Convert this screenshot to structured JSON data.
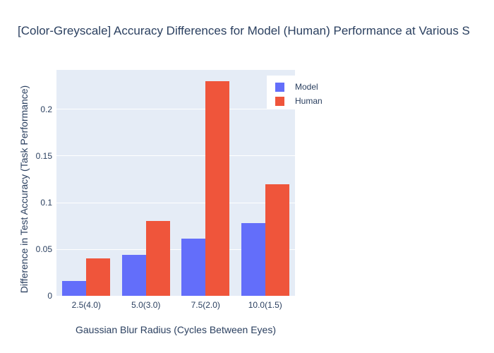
{
  "chart_title": "[Color-Greyscale] Accuracy Differences for Model (Human) Performance at Various S",
  "legend": {
    "items": [
      {
        "label": "Model",
        "color": "#636EFA"
      },
      {
        "label": "Human",
        "color": "#EF553B"
      }
    ]
  },
  "chart_data": {
    "type": "bar",
    "title": "[Color-Greyscale] Accuracy Differences for Model (Human) Performance at Various S",
    "categories": [
      "2.5(4.0)",
      "5.0(3.0)",
      "7.5(2.0)",
      "10.0(1.5)"
    ],
    "series": [
      {
        "name": "Model",
        "color": "#636EFA",
        "values": [
          0.016,
          0.044,
          0.061,
          0.078
        ]
      },
      {
        "name": "Human",
        "color": "#EF553B",
        "values": [
          0.04,
          0.08,
          0.23,
          0.12
        ]
      }
    ],
    "xlabel": "Gaussian Blur Radius (Cycles Between Eyes)",
    "ylabel": "Difference in Test Accuracy (Task Performance)",
    "ylim": [
      0,
      0.2424
    ],
    "yticks": [
      0,
      0.05,
      0.1,
      0.15,
      0.2
    ],
    "ytick_labels": [
      "0",
      "0.05",
      "0.1",
      "0.15",
      "0.2"
    ],
    "grid": true,
    "legend_position": "top-right",
    "plot_bg_color": "#E5ECF6",
    "grid_color": "#FFFFFF",
    "text_color": "#2A3F5F",
    "bar_group_gap_fraction": 0.2
  }
}
